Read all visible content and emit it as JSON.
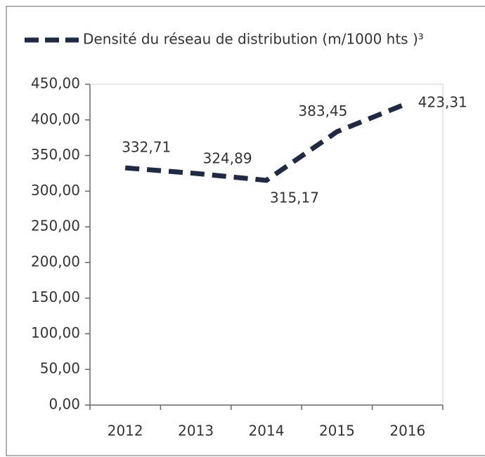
{
  "chart_data": {
    "type": "line",
    "categories": [
      "2012",
      "2013",
      "2014",
      "2015",
      "2016"
    ],
    "series": [
      {
        "name": "Densité du réseau de distribution  (m/1000 hts )³",
        "color": "#1f2a44",
        "values": [
          332.71,
          324.89,
          315.17,
          383.45,
          423.31
        ],
        "value_labels": [
          "332,71",
          "324,89",
          "315,17",
          "383,45",
          "423,31"
        ]
      }
    ],
    "ylim": [
      0,
      450
    ],
    "yticks": [
      {
        "value": 0,
        "label": "0,00"
      },
      {
        "value": 50,
        "label": "50,00"
      },
      {
        "value": 100,
        "label": "100,00"
      },
      {
        "value": 150,
        "label": "150,00"
      },
      {
        "value": 200,
        "label": "200,00"
      },
      {
        "value": 250,
        "label": "250,00"
      },
      {
        "value": 300,
        "label": "300,00"
      },
      {
        "value": 350,
        "label": "350,00"
      },
      {
        "value": 400,
        "label": "400,00"
      },
      {
        "value": 450,
        "label": "450,00"
      }
    ],
    "legend": "top",
    "grid": false
  }
}
